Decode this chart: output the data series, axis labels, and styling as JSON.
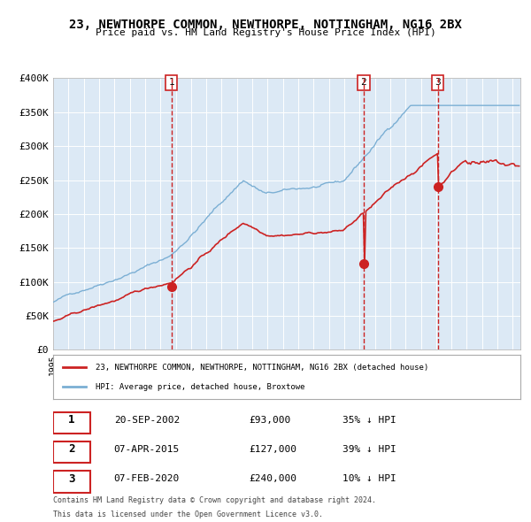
{
  "title_line1": "23, NEWTHORPE COMMON, NEWTHORPE, NOTTINGHAM, NG16 2BX",
  "title_line2": "Price paid vs. HM Land Registry's House Price Index (HPI)",
  "ylim": [
    0,
    400000
  ],
  "ytick_vals": [
    0,
    50000,
    100000,
    150000,
    200000,
    250000,
    300000,
    350000,
    400000
  ],
  "ytick_labels": [
    "£0",
    "£50K",
    "£100K",
    "£150K",
    "£200K",
    "£250K",
    "£300K",
    "£350K",
    "£400K"
  ],
  "year_start": 1995,
  "year_end": 2025,
  "bg_color": "#dce9f5",
  "plot_bg": "#dce9f5",
  "hpi_color": "#7bafd4",
  "price_color": "#cc2222",
  "sale_marker_color": "#cc2222",
  "vline_color": "#cc2222",
  "sale_dates": [
    "2002-09-20",
    "2015-04-07",
    "2020-02-07"
  ],
  "sale_prices": [
    93000,
    127000,
    240000
  ],
  "sale_labels": [
    "1",
    "2",
    "3"
  ],
  "legend_label_price": "23, NEWTHORPE COMMON, NEWTHORPE, NOTTINGHAM, NG16 2BX (detached house)",
  "legend_label_hpi": "HPI: Average price, detached house, Broxtowe",
  "table_rows": [
    {
      "num": "1",
      "date": "20-SEP-2002",
      "price": "£93,000",
      "change": "35% ↓ HPI"
    },
    {
      "num": "2",
      "date": "07-APR-2015",
      "price": "£127,000",
      "change": "39% ↓ HPI"
    },
    {
      "num": "3",
      "date": "07-FEB-2020",
      "price": "£240,000",
      "change": "10% ↓ HPI"
    }
  ],
  "footer_line1": "Contains HM Land Registry data © Crown copyright and database right 2024.",
  "footer_line2": "This data is licensed under the Open Government Licence v3.0."
}
